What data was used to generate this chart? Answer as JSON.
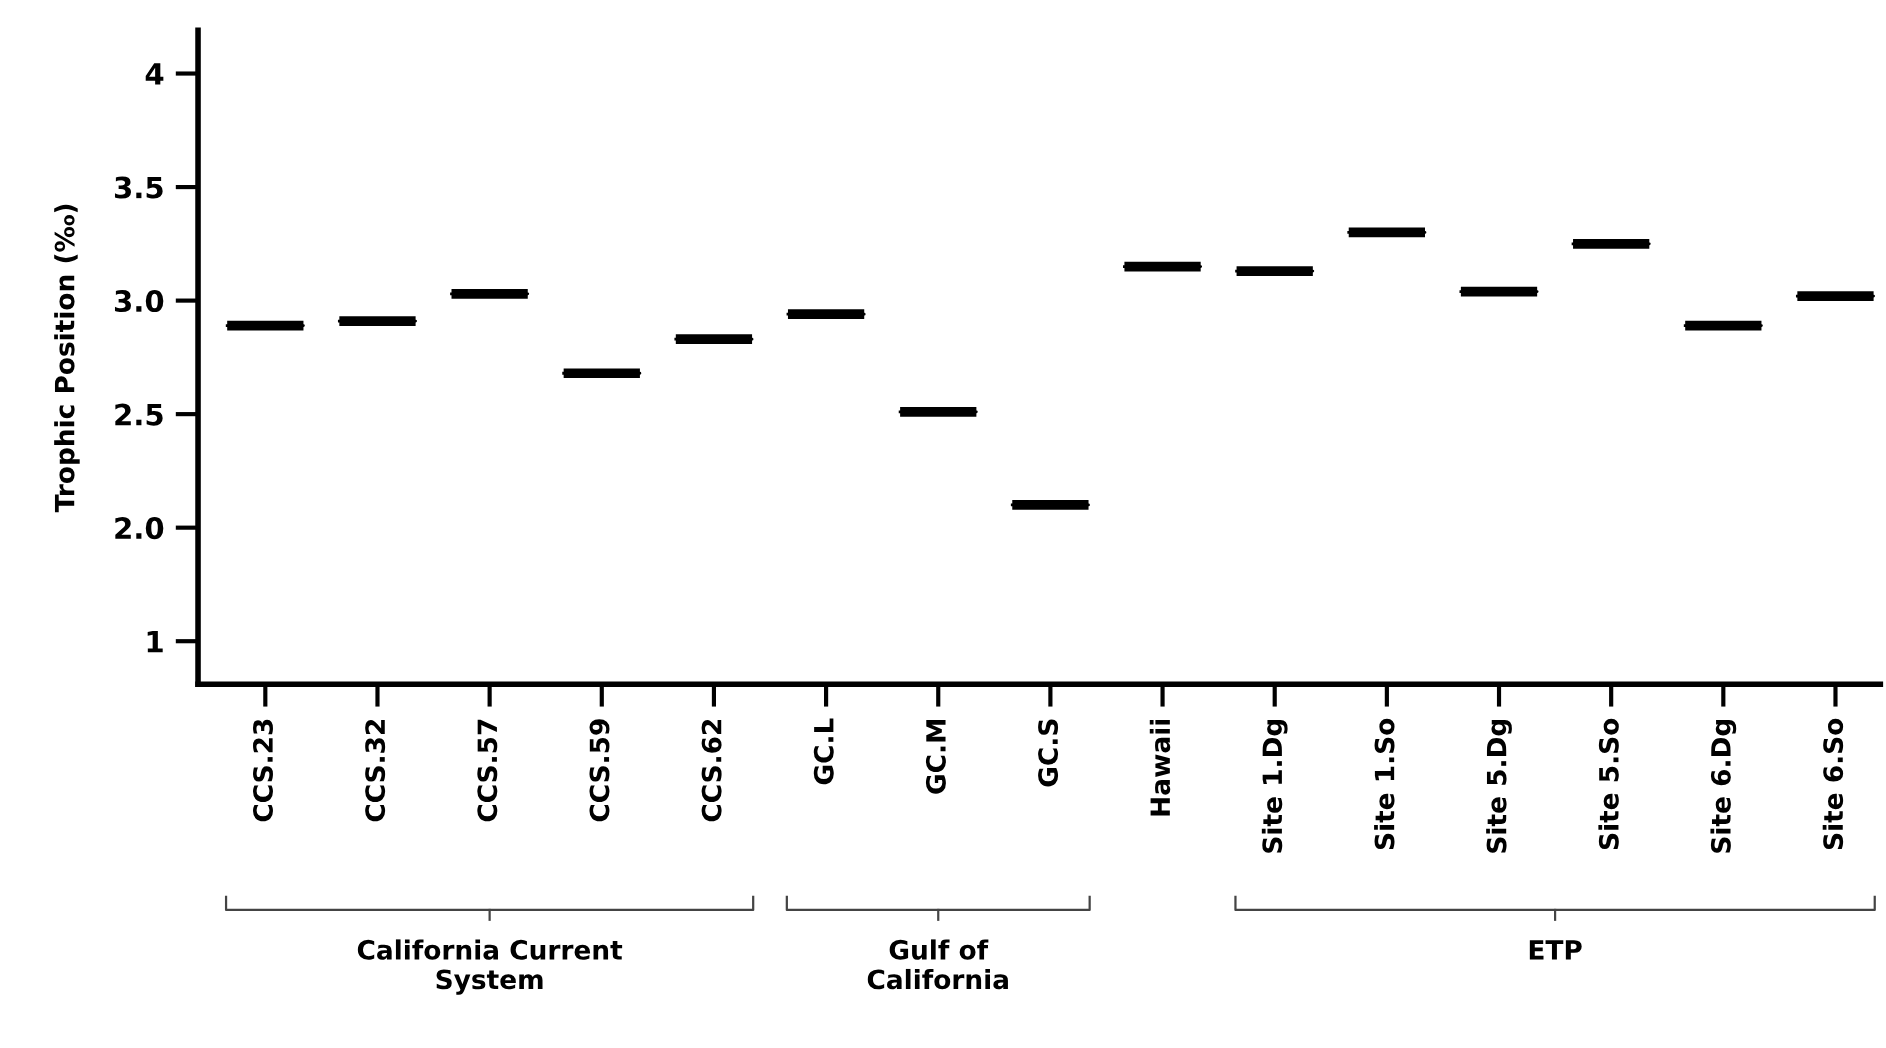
{
  "chart_data": {
    "type": "box",
    "ylabel": "Trophic Position (‰)",
    "categories": [
      "CCS.23",
      "CCS.32",
      "CCS.57",
      "CCS.59",
      "CCS.62",
      "GC.L",
      "GC.M",
      "GC.S",
      "Hawaii",
      "Site 1.Dg",
      "Site 1.So",
      "Site 5.Dg",
      "Site 5.So",
      "Site 6.Dg",
      "Site 6.So"
    ],
    "boxes": [
      {
        "low": 2.89,
        "q1": 2.89,
        "median": 2.89,
        "q3": 2.89,
        "high": 2.89
      },
      {
        "low": 2.91,
        "q1": 2.91,
        "median": 2.91,
        "q3": 2.91,
        "high": 2.91
      },
      {
        "low": 3.03,
        "q1": 3.03,
        "median": 3.03,
        "q3": 3.03,
        "high": 3.03
      },
      {
        "low": 2.68,
        "q1": 2.68,
        "median": 2.68,
        "q3": 2.68,
        "high": 2.68
      },
      {
        "low": 2.83,
        "q1": 2.83,
        "median": 2.83,
        "q3": 2.83,
        "high": 2.83
      },
      {
        "low": 2.94,
        "q1": 2.94,
        "median": 2.94,
        "q3": 2.94,
        "high": 2.94
      },
      {
        "low": 2.51,
        "q1": 2.51,
        "median": 2.51,
        "q3": 2.51,
        "high": 2.51
      },
      {
        "low": 2.1,
        "q1": 2.1,
        "median": 2.1,
        "q3": 2.1,
        "high": 2.1
      },
      {
        "low": 3.15,
        "q1": 3.15,
        "median": 3.15,
        "q3": 3.15,
        "high": 3.15
      },
      {
        "low": 3.13,
        "q1": 3.13,
        "median": 3.13,
        "q3": 3.13,
        "high": 3.13
      },
      {
        "low": 3.3,
        "q1": 3.3,
        "median": 3.3,
        "q3": 3.3,
        "high": 3.3
      },
      {
        "low": 3.04,
        "q1": 3.04,
        "median": 3.04,
        "q3": 3.04,
        "high": 3.04
      },
      {
        "low": 3.25,
        "q1": 3.25,
        "median": 3.25,
        "q3": 3.25,
        "high": 3.25
      },
      {
        "low": 2.89,
        "q1": 2.89,
        "median": 2.89,
        "q3": 2.89,
        "high": 2.89
      },
      {
        "low": 3.02,
        "q1": 3.02,
        "median": 3.02,
        "q3": 3.02,
        "high": 3.02
      }
    ],
    "color": "#000000",
    "ylim": [
      1.31,
      4.19
    ],
    "yticks": [
      {
        "value": 1.5,
        "label": "1"
      },
      {
        "value": 2.0,
        "label": "2.0"
      },
      {
        "value": 2.5,
        "label": "2.5"
      },
      {
        "value": 3.0,
        "label": "3.0"
      },
      3.5,
      4
    ],
    "annotations": [
      "California Current\nSystem",
      "Gulf of\nCalifornia",
      "ETP"
    ]
  }
}
